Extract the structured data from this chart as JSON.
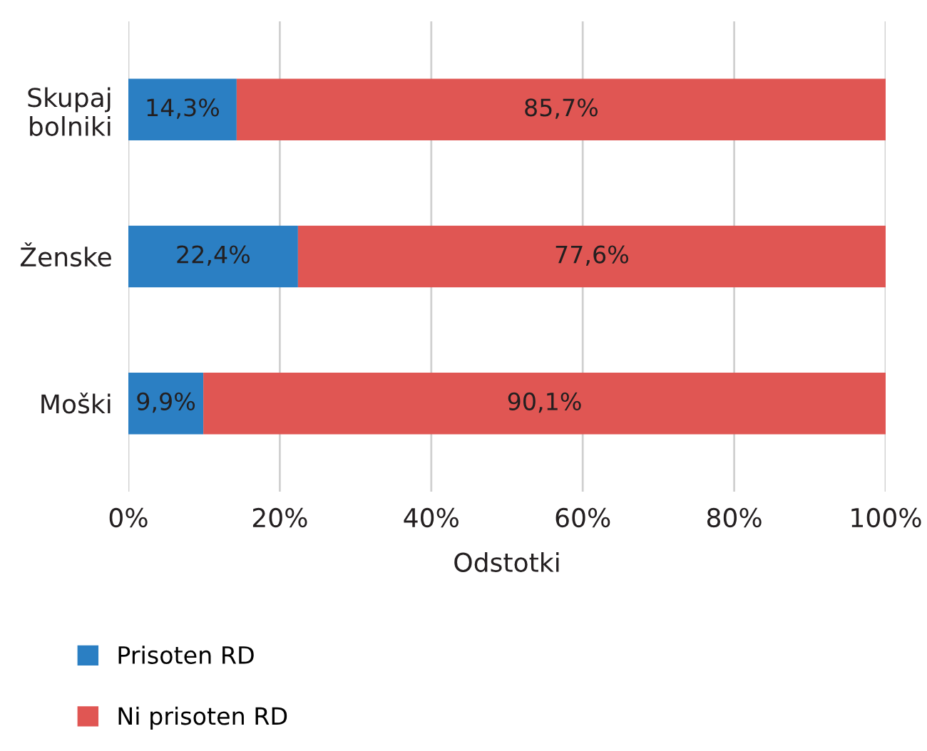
{
  "chart_data": {
    "type": "bar",
    "orientation": "horizontal",
    "stacked": true,
    "categories": [
      "Skupaj\nbolniki",
      "Ženske",
      "Moški"
    ],
    "series": [
      {
        "name": "Prisoten RD",
        "color": "#2b7fc3",
        "values": [
          14.3,
          22.4,
          9.9
        ],
        "value_labels": [
          "14,3%",
          "22,4%",
          "9,9%"
        ]
      },
      {
        "name": "Ni prisoten RD",
        "color": "#e05653",
        "values": [
          85.7,
          77.6,
          90.1
        ],
        "value_labels": [
          "85,7%",
          "77,6%",
          "90,1%"
        ]
      }
    ],
    "xlabel": "Odstotki",
    "xlim": [
      0,
      100
    ],
    "xticks": [
      {
        "value": 0,
        "label": "0%"
      },
      {
        "value": 20,
        "label": "20%"
      },
      {
        "value": 40,
        "label": "40%"
      },
      {
        "value": 60,
        "label": "60%"
      },
      {
        "value": 80,
        "label": "80%"
      },
      {
        "value": 100,
        "label": "100%"
      }
    ],
    "grid": "x",
    "legend": "bottom left"
  }
}
